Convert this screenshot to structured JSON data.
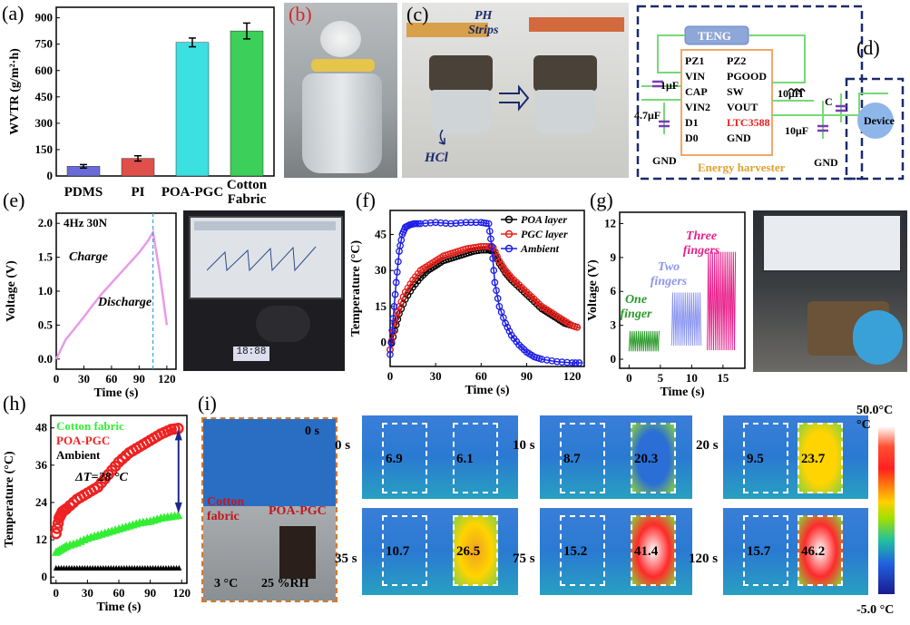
{
  "panel_labels": {
    "a": "(a)",
    "b": "(b)",
    "c": "(c)",
    "d": "(d)",
    "e": "(e)",
    "f": "(f)",
    "g": "(g)",
    "h": "(h)",
    "i": "(i)"
  },
  "chart_data": [
    {
      "id": "a",
      "type": "bar",
      "categories": [
        "PDMS",
        "PI",
        "POA-PGC",
        "Cotton Fabric"
      ],
      "values": [
        55,
        100,
        760,
        825
      ],
      "errors": [
        10,
        15,
        25,
        45
      ],
      "colors": [
        "#6a6ad8",
        "#e0504a",
        "#3de0e0",
        "#3ccf5a"
      ],
      "ylabel": "WVTR (g/m²·h)",
      "yticks": [
        "0",
        "150",
        "300",
        "450",
        "600",
        "750",
        "900"
      ],
      "ylim": [
        0,
        960
      ]
    },
    {
      "id": "e",
      "type": "line",
      "annotation": "4Hz 30N",
      "labels": [
        "Charge",
        "Discharge"
      ],
      "xlabel": "Time (s)",
      "ylabel": "Voltage (V)",
      "xticks": [
        "0",
        "30",
        "60",
        "90",
        "120"
      ],
      "yticks": [
        "0.0",
        "0.5",
        "1.0",
        "1.5",
        "2.0"
      ],
      "xlim": [
        0,
        130
      ],
      "ylim": [
        -0.15,
        2.15
      ],
      "series": [
        {
          "x": [
            0,
            10,
            20,
            30,
            40,
            50,
            60,
            70,
            80,
            90,
            100,
            105,
            112,
            120
          ],
          "y": [
            0.0,
            0.28,
            0.45,
            0.62,
            0.8,
            0.97,
            1.12,
            1.27,
            1.42,
            1.57,
            1.75,
            1.87,
            1.3,
            0.5
          ],
          "color": "#e89be8"
        }
      ],
      "dashed_x": 105
    },
    {
      "id": "f",
      "type": "line",
      "xlabel": "Time (s)",
      "ylabel": "Temperature (°C)",
      "xticks": [
        "0",
        "30",
        "60",
        "90",
        "120"
      ],
      "yticks": [
        "0",
        "15",
        "30",
        "45"
      ],
      "xlim": [
        0,
        128
      ],
      "ylim": [
        -10,
        55
      ],
      "series": [
        {
          "name": "POA layer",
          "color": "#000000",
          "x": [
            0,
            3,
            6,
            10,
            15,
            20,
            25,
            30,
            35,
            40,
            45,
            50,
            55,
            60,
            65,
            68,
            72,
            76,
            80,
            85,
            90,
            95,
            100,
            105,
            110,
            115,
            120,
            125
          ],
          "y": [
            -3,
            5,
            12,
            18,
            23,
            27,
            30,
            32,
            34,
            35,
            36,
            37,
            38,
            38.5,
            38.5,
            38,
            33,
            29,
            26,
            23,
            20,
            17,
            14,
            12,
            10,
            8,
            7,
            6
          ]
        },
        {
          "name": "PGC layer",
          "color": "#e8201c",
          "x": [
            0,
            3,
            6,
            10,
            15,
            20,
            25,
            30,
            35,
            40,
            45,
            50,
            55,
            60,
            65,
            68,
            72,
            76,
            80,
            85,
            90,
            95,
            100,
            105,
            110,
            115,
            120,
            125
          ],
          "y": [
            -3,
            8,
            15,
            21,
            26,
            30,
            32,
            34,
            36,
            37,
            38,
            39,
            39.5,
            40,
            40,
            39.5,
            34,
            30,
            27,
            24,
            21,
            18,
            15,
            13,
            11,
            9,
            7,
            6
          ]
        },
        {
          "name": "Ambient",
          "color": "#1c1ce8",
          "x": [
            0,
            2,
            4,
            6,
            8,
            10,
            13,
            16,
            20,
            30,
            40,
            50,
            60,
            65,
            67,
            69,
            72,
            76,
            80,
            85,
            90,
            95,
            100,
            110,
            120,
            127
          ],
          "y": [
            -5,
            10,
            25,
            38,
            45,
            48,
            49,
            49.5,
            49.5,
            50,
            49.5,
            50,
            50,
            49.5,
            40,
            25,
            15,
            8,
            3,
            -1,
            -4,
            -6,
            -7,
            -8,
            -8.5,
            -8.5
          ]
        }
      ]
    },
    {
      "id": "g",
      "type": "line",
      "xlabel": "Time (s)",
      "ylabel": "Voltage (V)",
      "xticks": [
        "0",
        "5",
        "10",
        "15"
      ],
      "yticks": [
        "0",
        "3",
        "6",
        "9",
        "12"
      ],
      "xlim": [
        -1.5,
        18.5
      ],
      "ylim": [
        -0.8,
        13
      ],
      "labels": [
        "One finger",
        "Two fingers",
        "Three fingers"
      ],
      "series": [
        {
          "name": "One finger",
          "color": "#2a9a2a",
          "x0": 0,
          "x1": 4.8,
          "low": 0.7,
          "high": 2.5
        },
        {
          "name": "Two fingers",
          "color": "#8c96f0",
          "x0": 6.8,
          "x1": 11.5,
          "low": 1.2,
          "high": 5.9
        },
        {
          "name": "Three fingers",
          "color": "#e8208c",
          "x0": 12.5,
          "x1": 17.0,
          "low": 0.8,
          "high": 9.5
        }
      ]
    },
    {
      "id": "h",
      "type": "scatter",
      "xlabel": "Time (s)",
      "ylabel": "Temperature (°C)",
      "xticks": [
        "0",
        "30",
        "60",
        "90",
        "120"
      ],
      "yticks": [
        "0",
        "12",
        "24",
        "36",
        "48"
      ],
      "xlim": [
        -5,
        125
      ],
      "ylim": [
        -2,
        52
      ],
      "annotation": "ΔT=28 °C",
      "series": [
        {
          "name": "Cotton fabric",
          "color": "#33ee33",
          "x": [
            0,
            5,
            10,
            20,
            30,
            40,
            50,
            60,
            70,
            80,
            90,
            100,
            110,
            120
          ],
          "y": [
            8,
            9,
            10,
            11,
            12.5,
            13.5,
            14.5,
            15.5,
            16.5,
            17.5,
            18,
            19,
            19.5,
            20
          ]
        },
        {
          "name": "POA-PGC",
          "color": "#ee2222",
          "x": [
            0,
            3,
            6,
            10,
            20,
            30,
            40,
            50,
            60,
            70,
            80,
            90,
            100,
            110,
            120
          ],
          "y": [
            14,
            19,
            21,
            22,
            25,
            27,
            29,
            33,
            37,
            40,
            42,
            44,
            46,
            47.5,
            48
          ]
        },
        {
          "name": "Ambient",
          "color": "#000000",
          "x": [
            0,
            10,
            20,
            30,
            40,
            50,
            60,
            70,
            80,
            90,
            100,
            110,
            120
          ],
          "y": [
            3,
            3,
            3,
            3,
            3,
            3,
            3,
            3,
            3,
            3,
            3,
            3,
            3
          ]
        }
      ]
    }
  ],
  "panel_c": {
    "strip_label": "PH\nStrips",
    "acid_label": "HCl"
  },
  "panel_d": {
    "teng": "TENG",
    "chip_left": [
      "PZ1",
      "VIN",
      "CAP",
      "VIN2",
      "D1",
      "D0"
    ],
    "chip_right": [
      "PZ2",
      "PGOOD",
      "SW",
      "VOUT",
      "LTC3588",
      "GND"
    ],
    "c1": "1μF",
    "c2": "4.7μF",
    "l1": "10μH",
    "c3": "10μF",
    "c4": "C",
    "gnd1": "GND",
    "gnd2": "GND",
    "device": "Device",
    "harvester": "Energy harvester"
  },
  "panel_i": {
    "photo_time": "0 s",
    "cotton_label": "Cotton\nfabric",
    "poa_label": "POA-PGC",
    "cond_temp": "3 °C",
    "cond_rh": "25 %RH",
    "thermal": [
      {
        "time": "0 s",
        "left": "6.9",
        "right": "6.1"
      },
      {
        "time": "10 s",
        "left": "8.7",
        "right": "20.3"
      },
      {
        "time": "20 s",
        "left": "9.5",
        "right": "23.7"
      },
      {
        "time": "35 s",
        "left": "10.7",
        "right": "26.5"
      },
      {
        "time": "75 s",
        "left": "15.2",
        "right": "41.4"
      },
      {
        "time": "120 s",
        "left": "15.7",
        "right": "46.2"
      }
    ],
    "scale_max": "50.0°C",
    "scale_unit": "°C",
    "scale_min": "-5.0 °C"
  }
}
